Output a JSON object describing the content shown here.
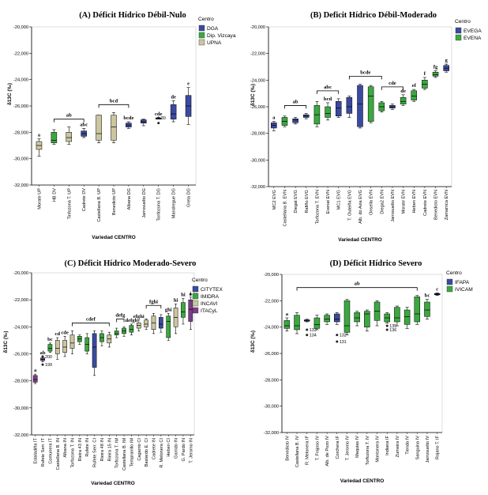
{
  "chart_data": [
    {
      "type": "box",
      "panel": "A",
      "title": "(A) Déficit Hídrico Débil-Nulo",
      "xlabel": "Variedad CENTRO",
      "ylabel": "δ13C (‰)",
      "ylim": [
        -32000,
        -20000
      ],
      "yticks": [
        "-20,000",
        "-22,000",
        "-24,000",
        "-26,000",
        "-28,000",
        "-30,000",
        "-32,000"
      ],
      "legend": {
        "title": "Centro",
        "entries": [
          {
            "name": "DGA",
            "color": "#3a4aa0"
          },
          {
            "name": "Dip. Vizcaya",
            "color": "#3ba840"
          },
          {
            "name": "UPNA",
            "color": "#ccc6a0"
          }
        ]
      },
      "categories": [
        "Morate UP",
        "HB DV",
        "Tinfozona T. UP",
        "Cadrete DV",
        "Castellana B. UP",
        "Benedicto UP",
        "Albana DG",
        "Jarrosuelto DG",
        "Tonfozona T. DG",
        "Mandregue DG",
        "Greta DG"
      ],
      "boxes": [
        {
          "c": 2,
          "min": -29.8,
          "q1": -29.3,
          "med": -29.0,
          "q3": -28.7,
          "max": -28.5
        },
        {
          "c": 1,
          "min": -28.9,
          "q1": -28.8,
          "med": -28.6,
          "q3": -28.0,
          "max": -27.8
        },
        {
          "c": 2,
          "min": -28.9,
          "q1": -28.7,
          "med": -28.4,
          "q3": -28.0,
          "max": -27.6
        },
        {
          "c": 0,
          "min": -28.4,
          "q1": -28.3,
          "med": -28.1,
          "q3": -27.9,
          "max": -27.7
        },
        {
          "c": 2,
          "min": -28.8,
          "q1": -28.6,
          "med": -28.1,
          "q3": -26.7,
          "max": -26.7
        },
        {
          "c": 2,
          "min": -28.8,
          "q1": -28.6,
          "med": -27.6,
          "q3": -26.7,
          "max": -26.5
        },
        {
          "c": 0,
          "min": -27.7,
          "q1": -27.6,
          "med": -27.45,
          "q3": -27.3,
          "max": -27.2
        },
        {
          "c": 0,
          "min": -27.5,
          "q1": -27.3,
          "med": -27.2,
          "q3": -27.05,
          "max": -27.0
        },
        {
          "c": 0,
          "min": -27.0,
          "q1": -27.0,
          "med": -26.95,
          "q3": -26.9,
          "max": -26.9
        },
        {
          "c": 0,
          "min": -27.2,
          "q1": -27.0,
          "med": -26.6,
          "q3": -25.9,
          "max": -25.6
        },
        {
          "c": 0,
          "min": -27.4,
          "q1": -26.8,
          "med": -26.0,
          "q3": -25.2,
          "max": -24.6
        }
      ],
      "letters": [
        {
          "c": 0,
          "text": "a"
        },
        {
          "c": 3,
          "text": "abc"
        },
        {
          "c": 6,
          "text": "bcde"
        },
        {
          "c": 8,
          "text": "cde"
        },
        {
          "c": 9,
          "text": "de"
        },
        {
          "c": 10,
          "text": "e"
        }
      ],
      "brackets": [
        {
          "from": 1,
          "to": 3,
          "text": "ab"
        },
        {
          "from": 4,
          "to": 6,
          "text": "bcd"
        }
      ],
      "outliers": [
        {
          "c": 8,
          "y": -27.3,
          "label": ""
        },
        {
          "c": 8,
          "y": -26.9,
          "label": "30"
        }
      ]
    },
    {
      "type": "box",
      "panel": "B",
      "title": "(B) Deficit Hídrico Débil-Moderado",
      "xlabel": "Variedad CENTRO",
      "ylabel": "δ13C (‰)",
      "ylim": [
        -32000,
        -20000
      ],
      "yticks": [
        "-20,000",
        "-22,000",
        "-24,000",
        "-26,000",
        "-28,000",
        "-30,000",
        "-32,000"
      ],
      "legend": {
        "title": "Centro",
        "entries": [
          {
            "name": "EVEGA",
            "color": "#3a4aa0"
          },
          {
            "name": "EVENA",
            "color": "#3ba840"
          }
        ]
      },
      "categories": [
        "MC2 EVG",
        "Castellana B. EVN",
        "Diegat EVG",
        "Rafiño EVG",
        "Torfozona T. EVN",
        "Evenat EVN",
        "MC1 EVG",
        "T. Outeiña EVG",
        "Alb. do Avia EVG",
        "Onsella EVN",
        "Diega2 EVN",
        "Jarrosuelto EVN",
        "Morate EVN",
        "Heben EVN",
        "Cadrete EVN",
        "Benedicto EVN",
        "Zamarrica EVN"
      ],
      "boxes": [
        {
          "c": 0,
          "min": -27.8,
          "q1": -27.6,
          "med": -27.4,
          "q3": -27.2,
          "max": -27.1
        },
        {
          "c": 1,
          "min": -27.5,
          "q1": -27.4,
          "med": -27.1,
          "q3": -26.8,
          "max": -26.7
        },
        {
          "c": 0,
          "min": -27.3,
          "q1": -27.2,
          "med": -27.0,
          "q3": -26.9,
          "max": -26.8
        },
        {
          "c": 0,
          "min": -26.9,
          "q1": -26.8,
          "med": -26.7,
          "q3": -26.6,
          "max": -26.5
        },
        {
          "c": 1,
          "min": -27.5,
          "q1": -27.3,
          "med": -26.6,
          "q3": -25.9,
          "max": -25.6
        },
        {
          "c": 1,
          "min": -27.0,
          "q1": -26.8,
          "med": -26.5,
          "q3": -26.0,
          "max": -25.7
        },
        {
          "c": 0,
          "min": -26.8,
          "q1": -26.7,
          "med": -26.1,
          "q3": -25.6,
          "max": -25.4
        },
        {
          "c": 0,
          "min": -26.8,
          "q1": -26.5,
          "med": -26.0,
          "q3": -25.3,
          "max": -25.2
        },
        {
          "c": 0,
          "min": -27.6,
          "q1": -27.5,
          "med": -25.8,
          "q3": -24.4,
          "max": -24.3
        },
        {
          "c": 1,
          "min": -27.2,
          "q1": -27.1,
          "med": -25.2,
          "q3": -24.5,
          "max": -24.4
        },
        {
          "c": 1,
          "min": -26.4,
          "q1": -26.3,
          "med": -26.0,
          "q3": -25.7,
          "max": -25.6
        },
        {
          "c": 0,
          "min": -26.2,
          "q1": -26.1,
          "med": -26.0,
          "q3": -25.9,
          "max": -25.8
        },
        {
          "c": 1,
          "min": -25.9,
          "q1": -25.8,
          "med": -25.6,
          "q3": -25.3,
          "max": -25.1
        },
        {
          "c": 1,
          "min": -25.6,
          "q1": -25.5,
          "med": -25.2,
          "q3": -24.8,
          "max": -24.7
        },
        {
          "c": 1,
          "min": -24.7,
          "q1": -24.6,
          "med": -24.3,
          "q3": -24.0,
          "max": -23.8
        },
        {
          "c": 1,
          "min": -23.8,
          "q1": -23.7,
          "med": -23.6,
          "q3": -23.4,
          "max": -23.3
        },
        {
          "c": 0,
          "min": -23.4,
          "q1": -23.3,
          "med": -23.1,
          "q3": -22.9,
          "max": -22.8
        }
      ],
      "letters": [
        {
          "c": 0,
          "text": "a"
        },
        {
          "c": 5,
          "text": "bcd"
        },
        {
          "c": 12,
          "text": "de"
        },
        {
          "c": 13,
          "text": "ef"
        },
        {
          "c": 14,
          "text": "f"
        },
        {
          "c": 15,
          "text": "fg"
        },
        {
          "c": 16,
          "text": "g"
        }
      ],
      "brackets": [
        {
          "from": 1,
          "to": 3,
          "text": "ab"
        },
        {
          "from": 4,
          "to": 6,
          "text": "abc"
        },
        {
          "from": 7,
          "to": 10,
          "text": "bcde"
        },
        {
          "from": 10,
          "to": 12,
          "text": "cde"
        }
      ],
      "outliers": []
    },
    {
      "type": "box",
      "panel": "C",
      "title": "(C) Déficit Hídrico Moderado-Severo",
      "xlabel": "Variedad CENTRO",
      "ylabel": "δ13C (‰)",
      "ylim": [
        -32000,
        -20000
      ],
      "yticks": [
        "-20,000",
        "-22,000",
        "-24,000",
        "-26,000",
        "-28,000",
        "-30,000",
        "-32,000"
      ],
      "legend": {
        "title": "Centro",
        "entries": [
          {
            "name": "CITYTEX",
            "color": "#3a4aa0"
          },
          {
            "name": "IMIDRA",
            "color": "#3ba840"
          },
          {
            "name": "INCAVI",
            "color": "#ccc6a0"
          },
          {
            "name": "ITACyL",
            "color": "#7a3d8a"
          }
        ]
      },
      "categories": [
        "Estaladiña IT",
        "Rufete Serr. IT",
        "Comunera IT",
        "Castellana B. IN",
        "Albana IN",
        "Torfozona T. IN",
        "Rieira 43 IN",
        "Rufete IN",
        "Rufete Serr. CI",
        "Rieira 48 IN",
        "Rieira 15 IN",
        "Torfozona T. IM",
        "Castellana B. IM",
        "Tempranillo IM",
        "Cagarrio CI",
        "Bastardo E. CI",
        "Cadrete IN",
        "R. Melonera CI",
        "Heben CI",
        "Garrido IN",
        "G. Pardo IN",
        "T. Jeromo IN"
      ],
      "boxes": [
        {
          "c": 3,
          "min": -28.2,
          "q1": -28.1,
          "med": -27.9,
          "q3": -27.6,
          "max": -27.5
        },
        {
          "c": 3,
          "min": -26.6,
          "q1": -26.5,
          "med": -26.4,
          "q3": -26.3,
          "max": -26.2
        },
        {
          "c": 1,
          "min": -25.9,
          "q1": -25.8,
          "med": -25.6,
          "q3": -25.3,
          "max": -25.2
        },
        {
          "c": 2,
          "min": -26.4,
          "q1": -26.0,
          "med": -25.6,
          "q3": -25.0,
          "max": -24.8
        },
        {
          "c": 2,
          "min": -26.2,
          "q1": -25.9,
          "med": -25.5,
          "q3": -25.0,
          "max": -24.7
        },
        {
          "c": 2,
          "min": -26.0,
          "q1": -25.6,
          "med": -25.2,
          "q3": -24.6,
          "max": -24.3
        },
        {
          "c": 1,
          "min": -25.3,
          "q1": -25.1,
          "med": -24.9,
          "q3": -24.7,
          "max": -24.6
        },
        {
          "c": 1,
          "min": -26.0,
          "q1": -25.8,
          "med": -25.3,
          "q3": -24.8,
          "max": -24.5
        },
        {
          "c": 0,
          "min": -27.6,
          "q1": -27.0,
          "med": -25.5,
          "q3": -24.5,
          "max": -24.3
        },
        {
          "c": 1,
          "min": -25.4,
          "q1": -25.1,
          "med": -24.8,
          "q3": -24.5,
          "max": -24.3
        },
        {
          "c": 2,
          "min": -25.5,
          "q1": -25.2,
          "med": -24.9,
          "q3": -24.6,
          "max": -24.4
        },
        {
          "c": 1,
          "min": -24.8,
          "q1": -24.6,
          "med": -24.5,
          "q3": -24.3,
          "max": -24.1
        },
        {
          "c": 1,
          "min": -24.7,
          "q1": -24.5,
          "med": -24.3,
          "q3": -24.1,
          "max": -24.0
        },
        {
          "c": 1,
          "min": -24.6,
          "q1": -24.4,
          "med": -24.2,
          "q3": -23.9,
          "max": -23.8
        },
        {
          "c": 2,
          "min": -24.3,
          "q1": -24.1,
          "med": -23.9,
          "q3": -23.7,
          "max": -23.5
        },
        {
          "c": 2,
          "min": -24.2,
          "q1": -24.0,
          "med": -23.8,
          "q3": -23.5,
          "max": -23.4
        },
        {
          "c": 2,
          "min": -24.5,
          "q1": -24.2,
          "med": -23.7,
          "q3": -23.2,
          "max": -23.0
        },
        {
          "c": 0,
          "min": -24.4,
          "q1": -24.1,
          "med": -23.8,
          "q3": -23.3,
          "max": -23.1
        },
        {
          "c": 1,
          "min": -25.0,
          "q1": -24.8,
          "med": -23.6,
          "q3": -23.2,
          "max": -23.0
        },
        {
          "c": 2,
          "min": -24.5,
          "q1": -24.0,
          "med": -23.3,
          "q3": -22.6,
          "max": -22.3
        },
        {
          "c": 1,
          "min": -23.8,
          "q1": -23.3,
          "med": -22.9,
          "q3": -22.2,
          "max": -21.9
        },
        {
          "c": 3,
          "min": -24.2,
          "q1": -23.6,
          "med": -22.7,
          "q3": -22.0,
          "max": -21.8
        }
      ],
      "letters": [
        {
          "c": 0,
          "text": "a"
        },
        {
          "c": 1,
          "text": "ab"
        },
        {
          "c": 2,
          "text": "bc"
        },
        {
          "c": 3,
          "text": "cd"
        },
        {
          "c": 4,
          "text": "cde"
        },
        {
          "c": 13,
          "text": "defgh"
        },
        {
          "c": 14,
          "text": "efghi"
        },
        {
          "c": 18,
          "text": "ghi"
        },
        {
          "c": 19,
          "text": "hi"
        },
        {
          "c": 20,
          "text": "hi"
        },
        {
          "c": 21,
          "text": "i"
        }
      ],
      "brackets": [
        {
          "from": 5,
          "to": 10,
          "text": "cdef"
        },
        {
          "from": 11,
          "to": 12,
          "text": "defg"
        },
        {
          "from": 15,
          "to": 17,
          "text": "fghi"
        }
      ],
      "outliers": [
        {
          "c": 1,
          "y": -26.8,
          "label": "199"
        },
        {
          "c": 1,
          "y": -26.2,
          "label": "200"
        },
        {
          "c": 21,
          "y": -21.6,
          "label": "20"
        }
      ]
    },
    {
      "type": "box",
      "panel": "D",
      "title": "(D) Déficit Hídrico Severo",
      "xlabel": "Variedad CENTRO",
      "ylabel": "δ13C (‰)",
      "ylim": [
        -32000,
        -20000
      ],
      "yticks": [
        "-20,000",
        "-22,000",
        "-24,000",
        "-26,000",
        "-28,000",
        "-30,000",
        "-32,000"
      ],
      "legend": {
        "title": "Centro",
        "entries": [
          {
            "name": "IFAPA",
            "color": "#3a4aa0"
          },
          {
            "name": "IVICAM",
            "color": "#3ba840"
          }
        ]
      },
      "categories": [
        "Benedicto IV",
        "Castellana B. IV",
        "R. Melonera IF",
        "T. Frajoso IV",
        "Alb. de Pozo IV",
        "Corchera IF",
        "T. Jeromo IV",
        "Maquias IV",
        "Torfozona T. IV",
        "Montonera IV",
        "Indiana IF",
        "Zumeira IV",
        "Tienda IV",
        "Sanguina IV",
        "Jarrosuelto IV",
        "Rojano T. IF"
      ],
      "boxes": [
        {
          "c": 1,
          "min": -24.3,
          "q1": -24.1,
          "med": -23.9,
          "q3": -23.5,
          "max": -23.3
        },
        {
          "c": 1,
          "min": -24.5,
          "q1": -24.2,
          "med": -23.9,
          "q3": -23.1,
          "max": -22.9
        },
        {
          "c": 0,
          "min": -23.6,
          "q1": -23.55,
          "med": -23.5,
          "q3": -23.45,
          "max": -23.4
        },
        {
          "c": 1,
          "min": -24.2,
          "q1": -24.1,
          "med": -23.8,
          "q3": -23.3,
          "max": -23.1
        },
        {
          "c": 1,
          "min": -23.8,
          "q1": -23.6,
          "med": -23.4,
          "q3": -23.1,
          "max": -23.0
        },
        {
          "c": 0,
          "min": -23.8,
          "q1": -23.6,
          "med": -23.4,
          "q3": -23.0,
          "max": -22.9
        },
        {
          "c": 1,
          "min": -24.6,
          "q1": -24.4,
          "med": -23.9,
          "q3": -22.0,
          "max": -21.9
        },
        {
          "c": 1,
          "min": -23.9,
          "q1": -23.6,
          "med": -23.3,
          "q3": -22.9,
          "max": -22.8
        },
        {
          "c": 1,
          "min": -24.3,
          "q1": -24.0,
          "med": -23.0,
          "q3": -22.8,
          "max": -22.7
        },
        {
          "c": 1,
          "min": -23.9,
          "q1": -23.5,
          "med": -22.8,
          "q3": -22.1,
          "max": -22.0
        },
        {
          "c": 1,
          "min": -23.7,
          "q1": -23.6,
          "med": -23.3,
          "q3": -23.0,
          "max": -22.9
        },
        {
          "c": 1,
          "min": -23.9,
          "q1": -23.6,
          "med": -23.3,
          "q3": -22.5,
          "max": -22.4
        },
        {
          "c": 1,
          "min": -24.1,
          "q1": -23.8,
          "med": -23.2,
          "q3": -22.7,
          "max": -22.5
        },
        {
          "c": 1,
          "min": -23.8,
          "q1": -23.6,
          "med": -23.0,
          "q3": -21.7,
          "max": -21.6
        },
        {
          "c": 1,
          "min": -23.4,
          "q1": -23.2,
          "med": -22.7,
          "q3": -22.1,
          "max": -21.9
        },
        {
          "c": 0,
          "min": -21.6,
          "q1": -21.55,
          "med": -21.5,
          "q3": -21.45,
          "max": -21.4
        }
      ],
      "letters": [
        {
          "c": 0,
          "text": "a"
        },
        {
          "c": 14,
          "text": "bc"
        },
        {
          "c": 15,
          "text": "c"
        }
      ],
      "brackets": [
        {
          "from": 1,
          "to": 13,
          "text": "ab"
        }
      ],
      "outliers": [
        {
          "c": 2,
          "y": -24.2,
          "label": "133"
        },
        {
          "c": 2,
          "y": -24.6,
          "label": "134"
        },
        {
          "c": 5,
          "y": -24.6,
          "label": "132"
        },
        {
          "c": 5,
          "y": -25.1,
          "label": "131"
        },
        {
          "c": 10,
          "y": -23.9,
          "label": "135"
        },
        {
          "c": 10,
          "y": -24.2,
          "label": "136"
        }
      ]
    }
  ]
}
